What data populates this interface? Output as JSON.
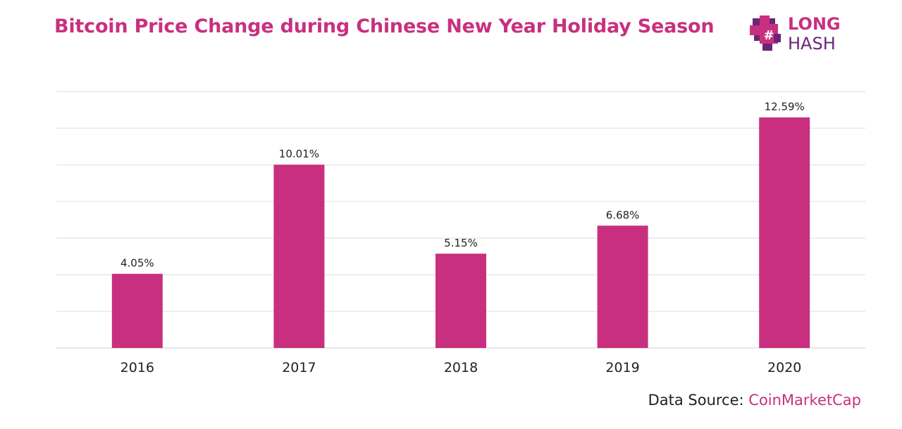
{
  "header": {
    "title": "Bitcoin Price Change during Chinese New Year Holiday Season",
    "logo_line1": "LONG",
    "logo_line2": "HASH"
  },
  "footer": {
    "source_prefix": "Data Source: ",
    "source_name": "CoinMarketCap"
  },
  "colors": {
    "bar": "#c8307f",
    "title": "#c8307f",
    "grid": "#dddddd",
    "logo_dark": "#6b2577"
  },
  "icons": {
    "logo": "longhash-pixel-logo-icon"
  },
  "chart_data": {
    "type": "bar",
    "categories": [
      "2016",
      "2017",
      "2018",
      "2019",
      "2020"
    ],
    "values": [
      4.05,
      10.01,
      5.15,
      6.68,
      12.59
    ],
    "data_labels": [
      "4.05%",
      "10.01%",
      "5.15%",
      "6.68%",
      "12.59%"
    ],
    "title": "Bitcoin Price Change during Chinese New Year Holiday Season",
    "xlabel": "",
    "ylabel": "",
    "ylim": [
      0,
      14
    ],
    "grid": true,
    "y_axis_labels_visible": false
  }
}
